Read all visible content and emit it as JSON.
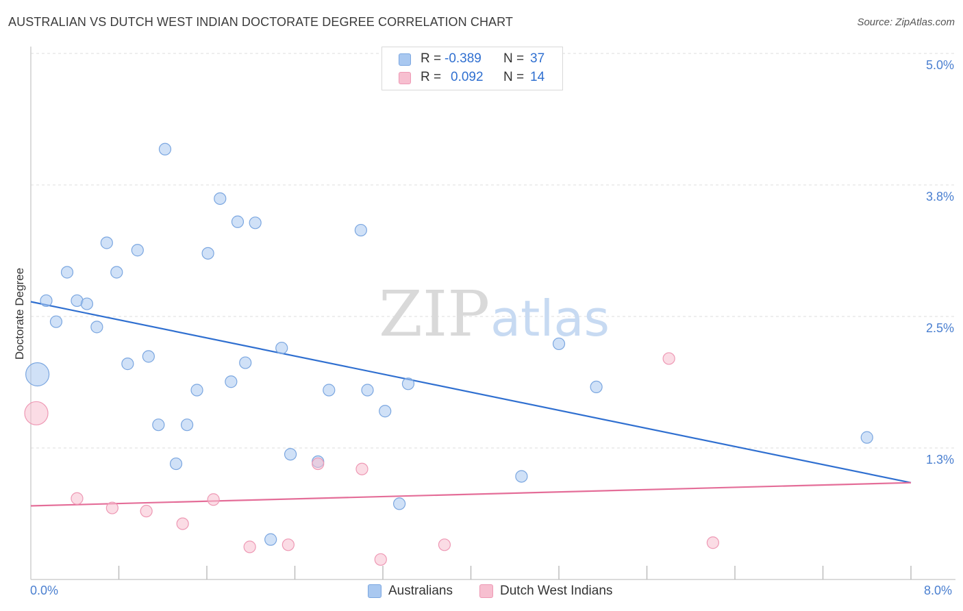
{
  "title": "AUSTRALIAN VS DUTCH WEST INDIAN DOCTORATE DEGREE CORRELATION CHART",
  "source": "Source: ZipAtlas.com",
  "watermark": {
    "zip": "ZIP",
    "atlas": "atlas"
  },
  "legend": {
    "rows": [
      {
        "r_label": "R =",
        "r_value": "-0.389",
        "n_label": "N =",
        "n_value": "37",
        "color": "#a9c8f0",
        "border": "#7aa6e0"
      },
      {
        "r_label": "R =",
        "r_value": "0.092",
        "n_label": "N =",
        "n_value": "14",
        "color": "#f7bfd0",
        "border": "#ee98b4"
      }
    ]
  },
  "bottom_legend": [
    {
      "label": "Australians",
      "color": "#a9c8f0",
      "border": "#7aa6e0"
    },
    {
      "label": "Dutch West Indians",
      "color": "#f7bfd0",
      "border": "#ee98b4"
    }
  ],
  "chart_data": {
    "type": "scatter",
    "title": "AUSTRALIAN VS DUTCH WEST INDIAN DOCTORATE DEGREE CORRELATION CHART",
    "xlabel": "",
    "ylabel": "Doctorate Degree",
    "xlim": [
      0,
      8
    ],
    "ylim": [
      0.0,
      5.0
    ],
    "x_tick_labels": [
      "0.0%",
      "8.0%"
    ],
    "y_tick_labels": [
      {
        "value": 5.0,
        "label": "5.0%"
      },
      {
        "value": 3.75,
        "label": "3.8%"
      },
      {
        "value": 2.5,
        "label": "2.5%"
      },
      {
        "value": 1.25,
        "label": "1.3%"
      }
    ],
    "grid": true,
    "series": [
      {
        "name": "Australians",
        "color": "#a9c8f0",
        "stroke": "#7aa6e0",
        "trend": {
          "x": [
            0.0,
            8.0
          ],
          "y": [
            2.64,
            0.92
          ],
          "color": "#2f6fd0"
        },
        "points": [
          {
            "x": 0.06,
            "y": 1.95,
            "big": true
          },
          {
            "x": 0.14,
            "y": 2.65
          },
          {
            "x": 0.23,
            "y": 2.45
          },
          {
            "x": 0.33,
            "y": 2.92
          },
          {
            "x": 0.42,
            "y": 2.65
          },
          {
            "x": 0.51,
            "y": 2.62
          },
          {
            "x": 0.6,
            "y": 2.4
          },
          {
            "x": 0.69,
            "y": 3.2
          },
          {
            "x": 0.78,
            "y": 2.92
          },
          {
            "x": 0.88,
            "y": 2.05
          },
          {
            "x": 0.97,
            "y": 3.13
          },
          {
            "x": 1.07,
            "y": 2.12
          },
          {
            "x": 1.16,
            "y": 1.47
          },
          {
            "x": 1.22,
            "y": 4.09
          },
          {
            "x": 1.32,
            "y": 1.1
          },
          {
            "x": 1.42,
            "y": 1.47
          },
          {
            "x": 1.51,
            "y": 1.8
          },
          {
            "x": 1.61,
            "y": 3.1
          },
          {
            "x": 1.72,
            "y": 3.62
          },
          {
            "x": 1.82,
            "y": 1.88
          },
          {
            "x": 1.88,
            "y": 3.4
          },
          {
            "x": 1.95,
            "y": 2.06
          },
          {
            "x": 2.04,
            "y": 3.39
          },
          {
            "x": 2.18,
            "y": 0.38
          },
          {
            "x": 2.28,
            "y": 2.2
          },
          {
            "x": 2.36,
            "y": 1.19
          },
          {
            "x": 2.61,
            "y": 1.12
          },
          {
            "x": 2.71,
            "y": 1.8
          },
          {
            "x": 3.0,
            "y": 3.32
          },
          {
            "x": 3.06,
            "y": 1.8
          },
          {
            "x": 3.22,
            "y": 1.6
          },
          {
            "x": 3.35,
            "y": 0.72
          },
          {
            "x": 3.43,
            "y": 1.86
          },
          {
            "x": 4.46,
            "y": 0.98
          },
          {
            "x": 4.8,
            "y": 2.24
          },
          {
            "x": 5.14,
            "y": 1.83
          },
          {
            "x": 7.6,
            "y": 1.35
          }
        ]
      },
      {
        "name": "Dutch West Indians",
        "color": "#f7bfd0",
        "stroke": "#ee98b4",
        "trend": {
          "x": [
            0.0,
            8.0
          ],
          "y": [
            0.7,
            0.92
          ],
          "color": "#e46d98"
        },
        "points": [
          {
            "x": 0.05,
            "y": 1.58,
            "big": true
          },
          {
            "x": 0.42,
            "y": 0.77
          },
          {
            "x": 0.74,
            "y": 0.68
          },
          {
            "x": 1.05,
            "y": 0.65
          },
          {
            "x": 1.38,
            "y": 0.53
          },
          {
            "x": 1.66,
            "y": 0.76
          },
          {
            "x": 1.99,
            "y": 0.31
          },
          {
            "x": 2.34,
            "y": 0.33
          },
          {
            "x": 2.61,
            "y": 1.1
          },
          {
            "x": 3.01,
            "y": 1.05
          },
          {
            "x": 3.18,
            "y": 0.19
          },
          {
            "x": 3.76,
            "y": 0.33
          },
          {
            "x": 5.8,
            "y": 2.1
          },
          {
            "x": 6.2,
            "y": 0.35
          }
        ]
      }
    ]
  }
}
